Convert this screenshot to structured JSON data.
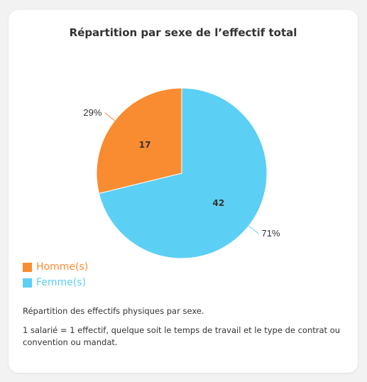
{
  "chart_data": {
    "type": "pie",
    "title": "Répartition par sexe de l’effectif total",
    "categories": [
      "Homme(s)",
      "Femme(s)"
    ],
    "values": [
      17,
      42
    ],
    "percent_labels": [
      "29%",
      "71%"
    ],
    "colors": [
      "#f98c30",
      "#5ccff5"
    ],
    "legend_position": "bottom-left"
  },
  "notes": {
    "line1": "Répartition des effectifs physiques par sexe.",
    "line2": "1 salarié = 1 effectif, quelque soit le temps de travail et le type de contrat ou convention ou mandat."
  }
}
